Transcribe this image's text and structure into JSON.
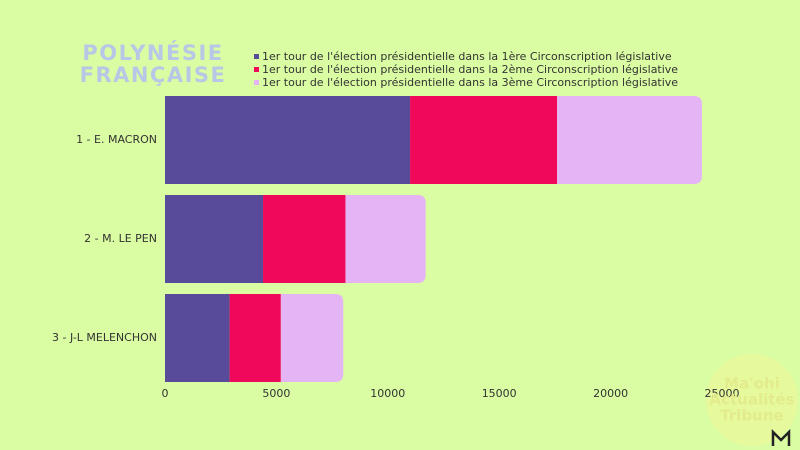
{
  "chart_data": {
    "type": "stacked-barh",
    "title": "POLYNÉSIE FRANÇAISE",
    "categories": [
      "1 - E. MACRON",
      "2 - M. LE PEN",
      "3 - J-L MELENCHON"
    ],
    "series": [
      {
        "name": "1er tour de l'élection présidentielle dans la 1ère Circonscription législative",
        "color": "#574b9a",
        "values": [
          11000,
          4400,
          2900
        ]
      },
      {
        "name": "1er tour de l'élection présidentielle dans la 2ème Circonscription législative",
        "color": "#f0085a",
        "values": [
          6600,
          3700,
          2300
        ]
      },
      {
        "name": "1er tour de l'élection présidentielle dans la 3ème Circonscription législative",
        "color": "#e4b4f5",
        "values": [
          6500,
          3600,
          2800
        ]
      }
    ],
    "xlim": [
      0,
      25000
    ],
    "xticks": [
      0,
      5000,
      10000,
      15000,
      20000,
      25000
    ],
    "grid": false,
    "legend": "top"
  },
  "watermark": [
    "Ma'ohi",
    "Actualités",
    "Tribune"
  ]
}
